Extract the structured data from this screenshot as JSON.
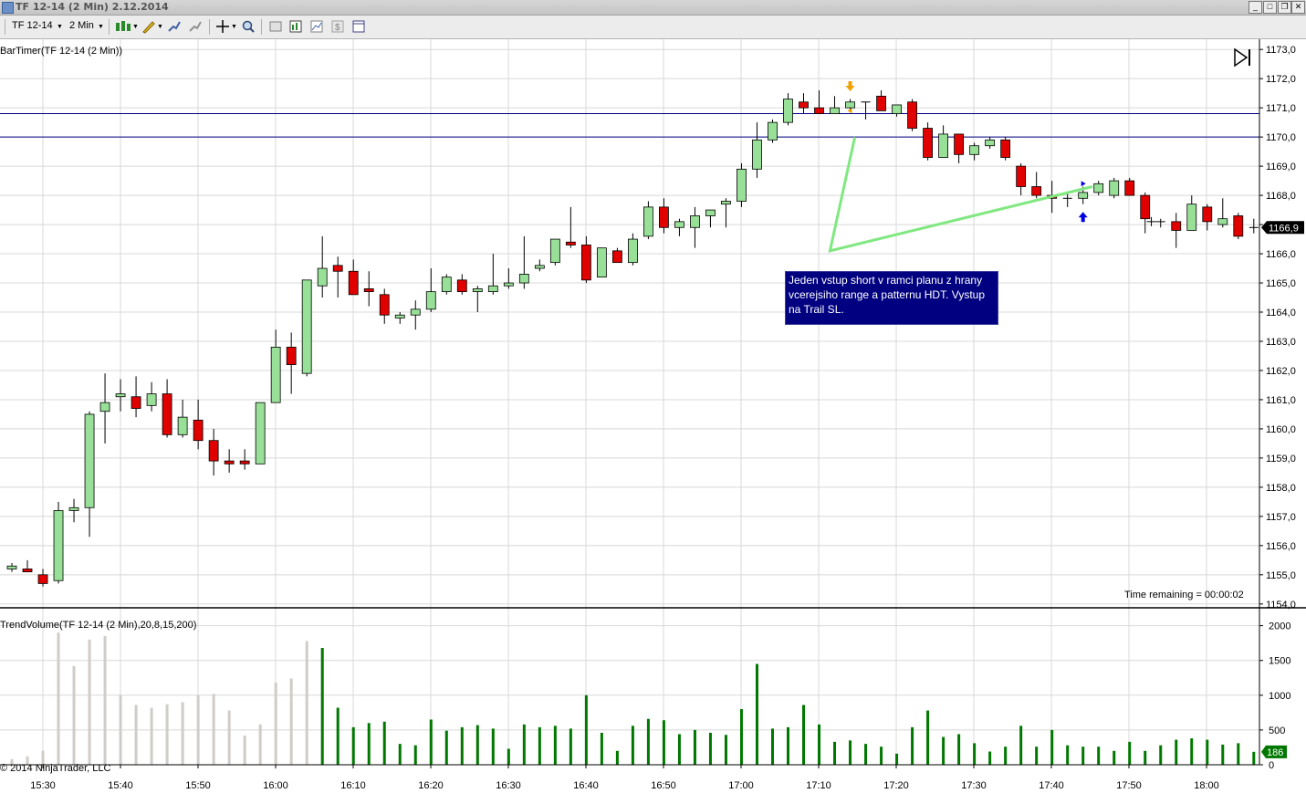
{
  "window": {
    "title": "TF 12-14 (2 Min)  2.12.2014",
    "buttons": [
      "_",
      "□",
      "✕"
    ]
  },
  "toolbar": {
    "instrument": "TF 12-14",
    "interval": "2 Min"
  },
  "price_panel": {
    "indicator_label": "BarTimer(TF 12-14 (2 Min))",
    "time_remaining": "Time remaining = 00:00:02",
    "current_price": "1166,9",
    "price_ticks": [
      "1173,0",
      "1172,0",
      "1171,0",
      "1170,0",
      "1169,0",
      "1168,0",
      "1167,0",
      "1166,0",
      "1165,0",
      "1164,0",
      "1163,0",
      "1162,0",
      "1161,0",
      "1160,0",
      "1159,0",
      "1158,0",
      "1157,0",
      "1156,0",
      "1155,0",
      "1154,0"
    ],
    "annotation": "Jeden vstup short v ramci planu z hrany vcerejsiho range a patternu HDT. Vystup na Trail SL.",
    "horizontal_lines": [
      1170.8,
      1170.0
    ]
  },
  "volume_panel": {
    "indicator_label": "TrendVolume(TF 12-14 (2 Min),20,8,15,200)",
    "current_volume": "186",
    "volume_ticks": [
      "2000",
      "1500",
      "1000",
      "500",
      "0"
    ]
  },
  "copyright": "© 2014 NinjaTrader, LLC",
  "time_ticks": [
    "15:30",
    "15:40",
    "15:50",
    "16:00",
    "16:10",
    "16:20",
    "16:30",
    "16:40",
    "16:50",
    "17:00",
    "17:10",
    "17:20",
    "17:30",
    "17:40",
    "17:50",
    "18:00"
  ],
  "colors": {
    "bull": "#98e098",
    "bear": "#e00000",
    "volume_active": "#007800",
    "volume_inactive": "#d0ccc8",
    "hline": "#000080",
    "trendline": "#80e880",
    "entry_arrow": "#f0a000",
    "exit_arrow": "#0000e0"
  },
  "chart_data": {
    "type": "candlestick",
    "title": "TF 12-14 (2 Min)",
    "ylim": [
      1153.9,
      1173.1
    ],
    "volume_ylim": [
      0,
      2100
    ],
    "time_ticks": [
      "15:30",
      "15:40",
      "15:50",
      "16:00",
      "16:10",
      "16:20",
      "16:30",
      "16:40",
      "16:50",
      "17:00",
      "17:10",
      "17:20",
      "17:30",
      "17:40",
      "17:50",
      "18:00"
    ],
    "bars": [
      {
        "x": 0,
        "o": 1155.2,
        "h": 1155.4,
        "l": 1155.1,
        "c": 1155.3,
        "v": 80
      },
      {
        "x": 1,
        "o": 1155.2,
        "h": 1155.5,
        "l": 1155.1,
        "c": 1155.1,
        "v": 120
      },
      {
        "x": 2,
        "o": 1155.0,
        "h": 1155.2,
        "l": 1154.6,
        "c": 1154.7,
        "v": 200
      },
      {
        "x": 3,
        "o": 1154.8,
        "h": 1157.5,
        "l": 1154.7,
        "c": 1157.2,
        "v": 1900
      },
      {
        "x": 4,
        "o": 1157.2,
        "h": 1157.6,
        "l": 1156.8,
        "c": 1157.3,
        "v": 1420
      },
      {
        "x": 5,
        "o": 1157.3,
        "h": 1160.6,
        "l": 1156.3,
        "c": 1160.5,
        "v": 1800
      },
      {
        "x": 6,
        "o": 1160.6,
        "h": 1161.9,
        "l": 1159.5,
        "c": 1160.9,
        "v": 1850
      },
      {
        "x": 7,
        "o": 1161.1,
        "h": 1161.7,
        "l": 1160.6,
        "c": 1161.2,
        "v": 1000
      },
      {
        "x": 8,
        "o": 1161.1,
        "h": 1161.8,
        "l": 1160.4,
        "c": 1160.7,
        "v": 860
      },
      {
        "x": 9,
        "o": 1160.8,
        "h": 1161.6,
        "l": 1160.6,
        "c": 1161.2,
        "v": 820
      },
      {
        "x": 10,
        "o": 1161.2,
        "h": 1161.7,
        "l": 1159.7,
        "c": 1159.8,
        "v": 870
      },
      {
        "x": 11,
        "o": 1159.8,
        "h": 1161.0,
        "l": 1159.7,
        "c": 1160.4,
        "v": 900
      },
      {
        "x": 12,
        "o": 1160.3,
        "h": 1161.0,
        "l": 1159.3,
        "c": 1159.6,
        "v": 1000
      },
      {
        "x": 13,
        "o": 1159.6,
        "h": 1160.0,
        "l": 1158.4,
        "c": 1158.9,
        "v": 1020
      },
      {
        "x": 14,
        "o": 1158.9,
        "h": 1159.3,
        "l": 1158.5,
        "c": 1158.8,
        "v": 780
      },
      {
        "x": 15,
        "o": 1158.9,
        "h": 1159.3,
        "l": 1158.6,
        "c": 1158.8,
        "v": 420
      },
      {
        "x": 16,
        "o": 1158.8,
        "h": 1160.9,
        "l": 1158.8,
        "c": 1160.9,
        "v": 580
      },
      {
        "x": 17,
        "o": 1160.9,
        "h": 1163.4,
        "l": 1160.9,
        "c": 1162.8,
        "v": 1180
      },
      {
        "x": 18,
        "o": 1162.8,
        "h": 1163.3,
        "l": 1161.2,
        "c": 1162.2,
        "v": 1240
      },
      {
        "x": 19,
        "o": 1161.9,
        "h": 1165.1,
        "l": 1161.8,
        "c": 1165.1,
        "v": 1780
      },
      {
        "x": 20,
        "o": 1164.9,
        "h": 1166.6,
        "l": 1164.5,
        "c": 1165.5,
        "v": 1680
      },
      {
        "x": 21,
        "o": 1165.6,
        "h": 1165.9,
        "l": 1164.5,
        "c": 1165.4,
        "v": 820
      },
      {
        "x": 22,
        "o": 1165.4,
        "h": 1165.8,
        "l": 1164.6,
        "c": 1164.6,
        "v": 540
      },
      {
        "x": 23,
        "o": 1164.8,
        "h": 1165.4,
        "l": 1164.2,
        "c": 1164.7,
        "v": 600
      },
      {
        "x": 24,
        "o": 1164.6,
        "h": 1164.8,
        "l": 1163.6,
        "c": 1163.9,
        "v": 620
      },
      {
        "x": 25,
        "o": 1163.8,
        "h": 1164.0,
        "l": 1163.6,
        "c": 1163.9,
        "v": 300
      },
      {
        "x": 26,
        "o": 1163.9,
        "h": 1164.4,
        "l": 1163.4,
        "c": 1164.1,
        "v": 280
      },
      {
        "x": 27,
        "o": 1164.1,
        "h": 1165.5,
        "l": 1164.0,
        "c": 1164.7,
        "v": 650
      },
      {
        "x": 28,
        "o": 1164.7,
        "h": 1165.3,
        "l": 1164.6,
        "c": 1165.2,
        "v": 490
      },
      {
        "x": 29,
        "o": 1165.1,
        "h": 1165.3,
        "l": 1164.6,
        "c": 1164.7,
        "v": 540
      },
      {
        "x": 30,
        "o": 1164.7,
        "h": 1164.9,
        "l": 1164.0,
        "c": 1164.8,
        "v": 570
      },
      {
        "x": 31,
        "o": 1164.7,
        "h": 1166.0,
        "l": 1164.6,
        "c": 1164.9,
        "v": 520
      },
      {
        "x": 32,
        "o": 1164.9,
        "h": 1165.5,
        "l": 1164.8,
        "c": 1165.0,
        "v": 230
      },
      {
        "x": 33,
        "o": 1165.0,
        "h": 1166.6,
        "l": 1164.8,
        "c": 1165.3,
        "v": 580
      },
      {
        "x": 34,
        "o": 1165.5,
        "h": 1165.8,
        "l": 1165.4,
        "c": 1165.6,
        "v": 540
      },
      {
        "x": 35,
        "o": 1165.7,
        "h": 1166.5,
        "l": 1165.6,
        "c": 1166.5,
        "v": 560
      },
      {
        "x": 36,
        "o": 1166.4,
        "h": 1167.6,
        "l": 1166.2,
        "c": 1166.3,
        "v": 520
      },
      {
        "x": 37,
        "o": 1166.3,
        "h": 1166.6,
        "l": 1165.0,
        "c": 1165.1,
        "v": 1000
      },
      {
        "x": 38,
        "o": 1165.2,
        "h": 1166.2,
        "l": 1165.2,
        "c": 1166.2,
        "v": 460
      },
      {
        "x": 39,
        "o": 1166.1,
        "h": 1166.2,
        "l": 1165.7,
        "c": 1165.7,
        "v": 200
      },
      {
        "x": 40,
        "o": 1165.7,
        "h": 1166.7,
        "l": 1165.6,
        "c": 1166.5,
        "v": 560
      },
      {
        "x": 41,
        "o": 1166.6,
        "h": 1167.8,
        "l": 1166.5,
        "c": 1167.6,
        "v": 660
      },
      {
        "x": 42,
        "o": 1167.6,
        "h": 1167.9,
        "l": 1166.7,
        "c": 1166.9,
        "v": 640
      },
      {
        "x": 43,
        "o": 1166.9,
        "h": 1167.2,
        "l": 1166.6,
        "c": 1167.1,
        "v": 440
      },
      {
        "x": 44,
        "o": 1166.9,
        "h": 1167.6,
        "l": 1166.2,
        "c": 1167.3,
        "v": 500
      },
      {
        "x": 45,
        "o": 1167.3,
        "h": 1167.5,
        "l": 1166.9,
        "c": 1167.5,
        "v": 460
      },
      {
        "x": 46,
        "o": 1167.7,
        "h": 1167.9,
        "l": 1166.9,
        "c": 1167.8,
        "v": 430
      },
      {
        "x": 47,
        "o": 1167.8,
        "h": 1169.1,
        "l": 1167.6,
        "c": 1168.9,
        "v": 800
      },
      {
        "x": 48,
        "o": 1168.9,
        "h": 1170.5,
        "l": 1168.6,
        "c": 1169.9,
        "v": 1450
      },
      {
        "x": 49,
        "o": 1169.9,
        "h": 1170.6,
        "l": 1169.8,
        "c": 1170.5,
        "v": 520
      },
      {
        "x": 50,
        "o": 1170.5,
        "h": 1171.5,
        "l": 1170.4,
        "c": 1171.3,
        "v": 540
      },
      {
        "x": 51,
        "o": 1171.2,
        "h": 1171.5,
        "l": 1170.8,
        "c": 1171.0,
        "v": 860
      },
      {
        "x": 52,
        "o": 1171.0,
        "h": 1171.6,
        "l": 1170.8,
        "c": 1170.8,
        "v": 580
      },
      {
        "x": 53,
        "o": 1170.8,
        "h": 1171.4,
        "l": 1170.8,
        "c": 1171.0,
        "v": 330
      },
      {
        "x": 54,
        "o": 1171.0,
        "h": 1171.3,
        "l": 1170.9,
        "c": 1171.2,
        "v": 350
      },
      {
        "x": 55,
        "o": 1171.2,
        "h": 1171.2,
        "l": 1170.6,
        "c": 1171.2,
        "v": 300
      },
      {
        "x": 56,
        "o": 1171.4,
        "h": 1171.6,
        "l": 1170.9,
        "c": 1170.9,
        "v": 260
      },
      {
        "x": 57,
        "o": 1170.8,
        "h": 1171.1,
        "l": 1170.7,
        "c": 1171.1,
        "v": 160
      },
      {
        "x": 58,
        "o": 1171.2,
        "h": 1171.3,
        "l": 1170.2,
        "c": 1170.3,
        "v": 540
      },
      {
        "x": 59,
        "o": 1170.3,
        "h": 1170.5,
        "l": 1169.2,
        "c": 1169.3,
        "v": 780
      },
      {
        "x": 60,
        "o": 1169.3,
        "h": 1170.4,
        "l": 1169.3,
        "c": 1170.1,
        "v": 400
      },
      {
        "x": 61,
        "o": 1170.1,
        "h": 1170.1,
        "l": 1169.1,
        "c": 1169.4,
        "v": 440
      },
      {
        "x": 62,
        "o": 1169.4,
        "h": 1169.8,
        "l": 1169.2,
        "c": 1169.7,
        "v": 310
      },
      {
        "x": 63,
        "o": 1169.7,
        "h": 1170.0,
        "l": 1169.6,
        "c": 1169.9,
        "v": 190
      },
      {
        "x": 64,
        "o": 1169.9,
        "h": 1170.0,
        "l": 1169.2,
        "c": 1169.3,
        "v": 260
      },
      {
        "x": 65,
        "o": 1169.0,
        "h": 1169.1,
        "l": 1168.0,
        "c": 1168.3,
        "v": 560
      },
      {
        "x": 66,
        "o": 1168.3,
        "h": 1168.8,
        "l": 1167.9,
        "c": 1168.0,
        "v": 260
      },
      {
        "x": 67,
        "o": 1168.0,
        "h": 1168.5,
        "l": 1167.4,
        "c": 1167.9,
        "v": 500
      },
      {
        "x": 68,
        "o": 1167.9,
        "h": 1168.1,
        "l": 1167.6,
        "c": 1167.9,
        "v": 280
      },
      {
        "x": 69,
        "o": 1167.9,
        "h": 1168.3,
        "l": 1167.7,
        "c": 1168.1,
        "v": 260
      },
      {
        "x": 70,
        "o": 1168.1,
        "h": 1168.5,
        "l": 1168.0,
        "c": 1168.4,
        "v": 260
      },
      {
        "x": 71,
        "o": 1168.0,
        "h": 1168.6,
        "l": 1167.9,
        "c": 1168.5,
        "v": 200
      },
      {
        "x": 72,
        "o": 1168.5,
        "h": 1168.6,
        "l": 1168.0,
        "c": 1168.0,
        "v": 330
      },
      {
        "x": 73,
        "o": 1168.0,
        "h": 1168.1,
        "l": 1166.7,
        "c": 1167.2,
        "v": 200
      },
      {
        "x": 74,
        "o": 1167.1,
        "h": 1167.2,
        "l": 1166.9,
        "c": 1167.1,
        "v": 280
      },
      {
        "x": 75,
        "o": 1167.1,
        "h": 1167.4,
        "l": 1166.2,
        "c": 1166.8,
        "v": 360
      },
      {
        "x": 76,
        "o": 1166.8,
        "h": 1168.0,
        "l": 1166.8,
        "c": 1167.7,
        "v": 380
      },
      {
        "x": 77,
        "o": 1167.6,
        "h": 1167.7,
        "l": 1166.8,
        "c": 1167.1,
        "v": 360
      },
      {
        "x": 78,
        "o": 1167.0,
        "h": 1167.9,
        "l": 1166.9,
        "c": 1167.2,
        "v": 290
      },
      {
        "x": 79,
        "o": 1167.3,
        "h": 1167.4,
        "l": 1166.5,
        "c": 1166.6,
        "v": 310
      },
      {
        "x": 80,
        "o": 1166.9,
        "h": 1167.2,
        "l": 1166.7,
        "c": 1166.9,
        "v": 186
      }
    ],
    "inactive_volume_bars": 20
  }
}
